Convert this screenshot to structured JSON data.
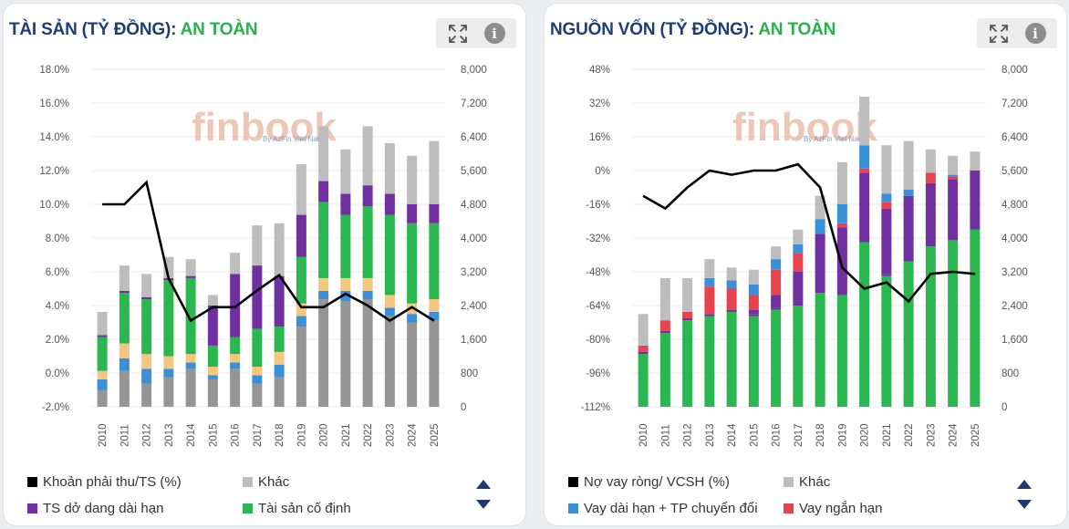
{
  "panels": [
    {
      "title": "TÀI SẢN (TỶ ĐỒNG):",
      "status": "AN TOÀN",
      "watermark": {
        "brand": "finbook",
        "tagline": "By AzFin Viet Nam"
      },
      "legend": [
        {
          "label": "Khoản phải thu/TS (%)",
          "color": "#000000"
        },
        {
          "label": "Khác",
          "color": "#bdbdbd"
        },
        {
          "label": "TS dở dang dài hạn",
          "color": "#7030a0"
        },
        {
          "label": "Tài sản cố định",
          "color": "#2bb74f"
        }
      ]
    },
    {
      "title": "NGUỒN VỐN (TỶ ĐỒNG):",
      "status": "AN TOÀN",
      "watermark": {
        "brand": "finbook",
        "tagline": "By AzFin Viet Nam"
      },
      "legend": [
        {
          "label": "Nợ vay ròng/ VCSH (%)",
          "color": "#000000"
        },
        {
          "label": "Khác",
          "color": "#bdbdbd"
        },
        {
          "label": "Vay dài hạn + TP chuyển đổi",
          "color": "#3a8fd9"
        },
        {
          "label": "Vay ngắn hạn",
          "color": "#e8424f"
        }
      ]
    }
  ],
  "chart_data": [
    {
      "type": "bar",
      "stacked": true,
      "categories": [
        "2010",
        "2011",
        "2012",
        "2013",
        "2014",
        "2015",
        "2016",
        "2017",
        "2018",
        "2019",
        "2020",
        "2021",
        "2022",
        "2023",
        "2024",
        "2025"
      ],
      "y_left": {
        "ylim": [
          -2,
          18
        ],
        "ticks": [
          "18.0%",
          "16.0%",
          "14.0%",
          "12.0%",
          "10.0%",
          "8.0%",
          "6.0%",
          "4.0%",
          "2.0%",
          "0.0%",
          "-2.0%"
        ]
      },
      "y_right": {
        "ylim": [
          0,
          8000
        ],
        "ticks": [
          "8,000",
          "7,200",
          "6,400",
          "5,600",
          "4,800",
          "4,000",
          "3,200",
          "2,400",
          "1,600",
          "800",
          "0"
        ]
      },
      "series": [
        {
          "values": [
            400,
            850,
            550,
            700,
            900,
            650,
            900,
            550,
            700,
            1900,
            2550,
            2500,
            2550,
            2150,
            2000,
            2050
          ],
          "color": "#959595"
        },
        {
          "values": [
            250,
            300,
            350,
            200,
            150,
            100,
            150,
            200,
            300,
            250,
            200,
            250,
            200,
            200,
            200,
            200
          ],
          "color": "#3a8fd9"
        },
        {
          "values": [
            200,
            350,
            350,
            300,
            200,
            200,
            200,
            200,
            300,
            300,
            300,
            300,
            300,
            300,
            250,
            300
          ],
          "color": "#f5c77e"
        },
        {
          "name": "Tài sản cố định",
          "values": [
            800,
            1200,
            1300,
            1800,
            1800,
            500,
            400,
            900,
            600,
            1100,
            1800,
            1500,
            1700,
            1900,
            1900,
            1800
          ],
          "color": "#2bb74f"
        },
        {
          "name": "TS dở dang dài hạn",
          "values": [
            50,
            50,
            50,
            50,
            50,
            950,
            1500,
            1500,
            1200,
            1000,
            500,
            500,
            500,
            500,
            450,
            450
          ],
          "color": "#7030a0"
        },
        {
          "name": "Khác",
          "values": [
            550,
            600,
            550,
            500,
            400,
            250,
            500,
            950,
            1250,
            1200,
            1300,
            1050,
            1400,
            1200,
            1150,
            1500
          ],
          "color": "#bdbdbd"
        }
      ],
      "line": {
        "name": "Khoản phải thu/TS (%)",
        "axis": "left",
        "values": [
          10.0,
          10.0,
          11.3,
          5.6,
          3.1,
          3.9,
          3.9,
          4.9,
          5.8,
          3.9,
          3.9,
          4.7,
          4.0,
          3.1,
          3.9,
          3.1
        ],
        "color": "#000000"
      }
    },
    {
      "type": "bar",
      "stacked": true,
      "categories": [
        "2010",
        "2011",
        "2012",
        "2013",
        "2014",
        "2015",
        "2016",
        "2017",
        "2018",
        "2019",
        "2020",
        "2021",
        "2022",
        "2023",
        "2024",
        "2025"
      ],
      "y_left": {
        "ylim": [
          -112,
          48
        ],
        "ticks": [
          "48%",
          "32%",
          "16%",
          "0%",
          "-16%",
          "-32%",
          "-48%",
          "-64%",
          "-80%",
          "-96%",
          "-112%"
        ]
      },
      "y_right": {
        "ylim": [
          0,
          8000
        ],
        "ticks": [
          "8,000",
          "7,200",
          "6,400",
          "5,600",
          "4,800",
          "4,000",
          "3,200",
          "2,400",
          "1,600",
          "800",
          "0"
        ]
      },
      "series": [
        {
          "values": [
            1250,
            1750,
            2050,
            2150,
            2250,
            2150,
            2300,
            2400,
            2700,
            2650,
            3900,
            3100,
            3450,
            3800,
            3950,
            4200
          ],
          "color": "#2bb74f"
        },
        {
          "values": [
            0,
            0,
            0,
            0,
            0,
            50,
            0,
            0,
            0,
            0,
            0,
            50,
            0,
            0,
            0,
            0
          ],
          "color": "#7030a0"
        },
        {
          "values": [
            50,
            50,
            50,
            50,
            50,
            100,
            50,
            0,
            0,
            0,
            0,
            0,
            0,
            0,
            0,
            0
          ],
          "color": "#7030a0"
        },
        {
          "values": [
            0,
            0,
            0,
            0,
            0,
            0,
            300,
            800,
            1400,
            1600,
            1650,
            1550,
            1550,
            1500,
            1450,
            1400
          ],
          "color": "#7030a0"
        },
        {
          "values": [
            150,
            250,
            150,
            650,
            500,
            350,
            600,
            450,
            0,
            100,
            100,
            150,
            0,
            250,
            50,
            0
          ],
          "color": "#e8424f"
        },
        {
          "values": [
            0,
            0,
            0,
            200,
            200,
            250,
            250,
            200,
            350,
            450,
            550,
            200,
            150,
            0,
            50,
            0
          ],
          "color": "#3a8fd9"
        },
        {
          "values": [
            750,
            1000,
            800,
            450,
            300,
            350,
            300,
            350,
            550,
            1000,
            1150,
            1150,
            1150,
            550,
            450,
            450
          ],
          "color": "#bdbdbd"
        }
      ],
      "line": {
        "name": "Nợ vay ròng/ VCSH (%)",
        "axis": "left",
        "values": [
          -12,
          -18,
          -8,
          0,
          -2,
          0,
          0,
          3,
          -8,
          -46,
          -56,
          -53,
          -62,
          -49,
          -48,
          -49
        ],
        "color": "#000000"
      }
    }
  ]
}
